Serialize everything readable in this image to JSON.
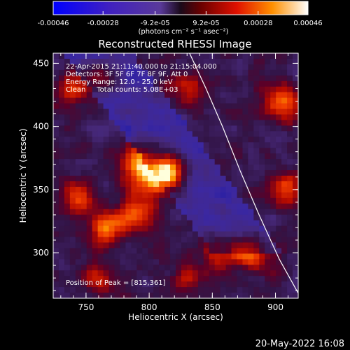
{
  "colorbar": {
    "tick_labels": [
      "-0.00046",
      "-0.00028",
      "-9.2e-05",
      "9.2e-05",
      "0.00028",
      "0.00046"
    ],
    "tick_values": [
      -0.00046,
      -0.00028,
      -9.2e-05,
      9.2e-05,
      0.00028,
      0.00046
    ],
    "range": [
      -0.00046,
      0.00046
    ],
    "unit_label": "(photons cm⁻² s⁻¹ asec⁻²)"
  },
  "chart_data": {
    "type": "heatmap",
    "title": "Reconstructed RHESSI Image",
    "xlabel": "Heliocentric X (arcsec)",
    "ylabel": "Heliocentric Y (arcsec)",
    "xlim": [
      724,
      918
    ],
    "ylim": [
      264,
      458
    ],
    "xticks": [
      750,
      800,
      850,
      900
    ],
    "yticks": [
      300,
      350,
      400,
      450
    ],
    "info_lines": [
      "22-Apr-2015 21:11:40.000 to 21:15:04.000",
      "Detectors: 3F 5F 6F 7F 8F 9F, Att 0",
      "Energy Range: 12.0 - 25.0 keV",
      "Clean     Total counts: 5.08E+03"
    ],
    "peak_label": "Position of Peak = [815,361]",
    "peak": [
      815,
      361
    ],
    "limb_curve": [
      [
        832,
        458
      ],
      [
        845,
        430
      ],
      [
        858,
        400
      ],
      [
        872,
        365
      ],
      [
        887,
        330
      ],
      [
        903,
        295
      ],
      [
        918,
        268
      ]
    ],
    "sources": [
      {
        "x": 815,
        "y": 362,
        "amp": 1.0,
        "sigma": 9
      },
      {
        "x": 795,
        "y": 367,
        "amp": 0.75,
        "sigma": 12
      },
      {
        "x": 790,
        "y": 330,
        "amp": 0.55,
        "sigma": 10
      },
      {
        "x": 765,
        "y": 320,
        "amp": 0.6,
        "sigma": 9
      },
      {
        "x": 745,
        "y": 345,
        "amp": 0.55,
        "sigma": 9
      },
      {
        "x": 740,
        "y": 430,
        "amp": 0.5,
        "sigma": 9
      },
      {
        "x": 762,
        "y": 440,
        "amp": 0.45,
        "sigma": 8
      },
      {
        "x": 880,
        "y": 300,
        "amp": 0.6,
        "sigma": 10
      },
      {
        "x": 855,
        "y": 300,
        "amp": 0.45,
        "sigma": 9
      },
      {
        "x": 910,
        "y": 350,
        "amp": 0.5,
        "sigma": 9
      },
      {
        "x": 905,
        "y": 420,
        "amp": 0.55,
        "sigma": 10
      },
      {
        "x": 830,
        "y": 430,
        "amp": 0.35,
        "sigma": 9
      },
      {
        "x": 760,
        "y": 280,
        "amp": 0.35,
        "sigma": 8
      },
      {
        "x": 830,
        "y": 280,
        "amp": 0.35,
        "sigma": 8
      }
    ]
  },
  "footer": {
    "date": "20-May-2022 16:08"
  }
}
